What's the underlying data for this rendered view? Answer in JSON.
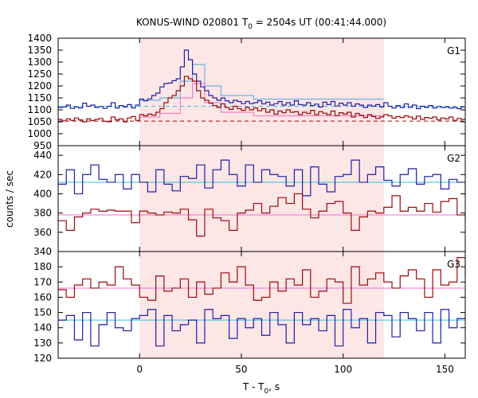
{
  "chart_data": {
    "type": "line",
    "title_prefix": "KONUS-WIND 020801 T",
    "title_sub": "0",
    "title_suffix": " = 2504s UT (00:41:44.000)",
    "xlabel_prefix": "T - T",
    "xlabel_sub": "0",
    "xlabel_suffix": ", s",
    "ylabel": "counts / sec",
    "xlim": [
      -40,
      160
    ],
    "xticks": [
      0,
      50,
      100,
      150
    ],
    "grid": false,
    "shaded_interval": [
      0,
      120
    ],
    "colors": {
      "blue": "#1f1fa8",
      "red": "#9e0a0a",
      "light_blue": "#6ab3e6",
      "pink": "#f080c8",
      "bg_blue": "#30c0e0",
      "bg_pink": "#f070d0",
      "shade": "#fde6e6"
    },
    "panels": [
      {
        "label": "G1",
        "ylim": [
          950,
          1400
        ],
        "yticks": [
          950,
          1000,
          1050,
          1100,
          1150,
          1200,
          1250,
          1300,
          1350,
          1400
        ],
        "x_start": -40,
        "bin_width": 2,
        "series": [
          {
            "color": "blue",
            "values": [
              1110,
              1112,
              1120,
              1106,
              1112,
              1108,
              1128,
              1115,
              1120,
              1110,
              1114,
              1106,
              1115,
              1130,
              1108,
              1118,
              1112,
              1122,
              1108,
              1120,
              1145,
              1138,
              1146,
              1160,
              1170,
              1196,
              1210,
              1212,
              1222,
              1230,
              1280,
              1350,
              1310,
              1250,
              1220,
              1196,
              1180,
              1160,
              1150,
              1140,
              1150,
              1138,
              1130,
              1140,
              1135,
              1126,
              1135,
              1126,
              1130,
              1138,
              1125,
              1132,
              1120,
              1126,
              1135,
              1120,
              1130,
              1120,
              1138,
              1122,
              1120,
              1130,
              1118,
              1124,
              1112,
              1132,
              1122,
              1135,
              1116,
              1128,
              1120,
              1130,
              1115,
              1125,
              1120,
              1110,
              1120,
              1115,
              1122,
              1112,
              1130,
              1115,
              1108,
              1118,
              1110,
              1125,
              1110,
              1120,
              1105,
              1115,
              1110,
              1118,
              1108,
              1114,
              1110,
              1112,
              1108,
              1110,
              1105,
              1112
            ]
          },
          {
            "color": "red",
            "values": [
              1060,
              1054,
              1062,
              1056,
              1066,
              1058,
              1050,
              1062,
              1055,
              1060,
              1064,
              1052,
              1050,
              1070,
              1058,
              1062,
              1050,
              1066,
              1072,
              1056,
              1080,
              1075,
              1082,
              1078,
              1090,
              1105,
              1130,
              1150,
              1160,
              1180,
              1200,
              1240,
              1230,
              1220,
              1180,
              1150,
              1140,
              1128,
              1118,
              1110,
              1125,
              1110,
              1102,
              1115,
              1105,
              1098,
              1110,
              1100,
              1108,
              1096,
              1105,
              1090,
              1100,
              1082,
              1095,
              1088,
              1100,
              1090,
              1092,
              1080,
              1090,
              1085,
              1098,
              1080,
              1092,
              1086,
              1080,
              1095,
              1076,
              1088,
              1082,
              1090,
              1070,
              1085,
              1078,
              1068,
              1080,
              1072,
              1064,
              1070,
              1080,
              1075,
              1065,
              1072,
              1068,
              1075,
              1070,
              1062,
              1074,
              1060,
              1068,
              1065,
              1070,
              1058,
              1066,
              1062,
              1070,
              1056,
              1064,
              1060
            ]
          }
        ],
        "steps": [
          {
            "color": "light_blue",
            "x": [
              0,
              10,
              20,
              26,
              32,
              40,
              56,
              120
            ],
            "y": [
              1140,
              1150,
              1220,
              1290,
              1200,
              1160,
              1145,
              1112
            ]
          },
          {
            "color": "pink",
            "x": [
              0,
              10,
              20,
              26,
              32,
              40,
              56,
              120
            ],
            "y": [
              1070,
              1085,
              1150,
              1210,
              1130,
              1090,
              1075,
              1060
            ]
          }
        ],
        "backgrounds": [
          {
            "color": "bg_blue",
            "value": 1115,
            "dashed": true
          },
          {
            "color": "red",
            "value": 1053,
            "dashed": true
          }
        ]
      },
      {
        "label": "G2",
        "ylim": [
          340,
          450
        ],
        "yticks": [
          340,
          360,
          380,
          400,
          420,
          440
        ],
        "x_start": -40,
        "bin_width": 4,
        "series": [
          {
            "color": "blue",
            "values": [
              410,
              425,
              400,
              420,
              430,
              415,
              412,
              420,
              405,
              420,
              412,
              402,
              425,
              410,
              403,
              418,
              416,
              430,
              406,
              425,
              435,
              420,
              408,
              430,
              412,
              425,
              420,
              418,
              408,
              425,
              398,
              428,
              410,
              402,
              418,
              420,
              435,
              412,
              420,
              428,
              414,
              408,
              420,
              426,
              410,
              418,
              420,
              405,
              415,
              412,
              398,
              420,
              412,
              425,
              418,
              404,
              420,
              440,
              410,
              428,
              412,
              430,
              418,
              432,
              425,
              400,
              420,
              418,
              440,
              405,
              410
            ]
          },
          {
            "color": "red",
            "values": [
              372,
              362,
              376,
              380,
              384,
              382,
              383,
              382,
              382,
              370,
              382,
              380,
              378,
              381,
              380,
              384,
              373,
              356,
              384,
              375,
              372,
              362,
              380,
              383,
              390,
              380,
              387,
              396,
              390,
              400,
              384,
              375,
              382,
              390,
              392,
              380,
              362,
              376,
              382,
              380,
              386,
              398,
              382,
              386,
              382,
              390,
              381,
              392,
              395,
              378,
              372,
              380,
              375,
              388,
              372,
              384,
              382,
              360,
              384,
              380,
              377,
              368,
              390,
              380,
              372,
              382,
              378,
              375,
              368,
              377,
              374
            ]
          }
        ],
        "backgrounds": [
          {
            "color": "bg_blue",
            "value": 412,
            "dashed": false
          },
          {
            "color": "bg_pink",
            "value": 378,
            "dashed": false
          }
        ]
      },
      {
        "label": "G3",
        "ylim": [
          120,
          190
        ],
        "yticks": [
          120,
          130,
          140,
          150,
          160,
          170,
          180
        ],
        "x_start": -40,
        "bin_width": 4,
        "series": [
          {
            "color": "blue",
            "values": [
              145,
              148,
              132,
              150,
              128,
              142,
              150,
              140,
              138,
              146,
              148,
              152,
              128,
              148,
              138,
              142,
              145,
              130,
              152,
              146,
              148,
              133,
              146,
              140,
              146,
              135,
              150,
              142,
              130,
              150,
              142,
              146,
              138,
              148,
              128,
              152,
              140,
              146,
              130,
              150,
              148,
              134,
              150,
              146,
              138,
              150,
              130,
              152,
              140,
              146,
              148,
              142,
              150,
              140,
              152,
              146,
              134,
              150,
              143,
              150,
              148,
              146,
              146,
              150,
              140,
              152,
              150,
              140,
              150,
              145,
              150
            ]
          },
          {
            "color": "red",
            "values": [
              165,
              160,
              168,
              172,
              166,
              170,
              168,
              180,
              172,
              168,
              160,
              158,
              174,
              164,
              166,
              172,
              160,
              170,
              162,
              166,
              176,
              170,
              180,
              168,
              158,
              160,
              170,
              164,
              172,
              168,
              178,
              160,
              164,
              172,
              170,
              156,
              180,
              168,
              172,
              176,
              170,
              166,
              174,
              178,
              172,
              160,
              178,
              168,
              170,
              186,
              174,
              166,
              162,
              170,
              178,
              168,
              160,
              172,
              170,
              178,
              164,
              176,
              168,
              164,
              166,
              160,
              168,
              170,
              166,
              160,
              166
            ]
          }
        ],
        "backgrounds": [
          {
            "color": "bg_pink",
            "value": 166,
            "dashed": false
          },
          {
            "color": "bg_blue",
            "value": 145,
            "dashed": false
          }
        ]
      }
    ]
  }
}
